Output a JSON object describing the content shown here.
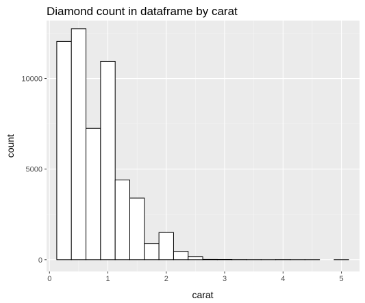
{
  "chart_data": {
    "type": "bar",
    "title": "Diamond count in dataframe by carat",
    "xlabel": "carat",
    "ylabel": "count",
    "xlim": [
      -0.05,
      5.31
    ],
    "ylim": [
      -650,
      13200
    ],
    "x_ticks": [
      0,
      1,
      2,
      3,
      4,
      5
    ],
    "x_tick_labels": [
      "0",
      "1",
      "2",
      "3",
      "4",
      "5"
    ],
    "y_ticks": [
      0,
      5000,
      10000
    ],
    "y_tick_labels": [
      "0",
      "5000",
      "10000"
    ],
    "grid": true,
    "bin_width": 0.25,
    "bins": [
      {
        "x0": 0.125,
        "x1": 0.375,
        "count": 12050
      },
      {
        "x0": 0.375,
        "x1": 0.625,
        "count": 12750
      },
      {
        "x0": 0.625,
        "x1": 0.875,
        "count": 7250
      },
      {
        "x0": 0.875,
        "x1": 1.125,
        "count": 10950
      },
      {
        "x0": 1.125,
        "x1": 1.375,
        "count": 4400
      },
      {
        "x0": 1.375,
        "x1": 1.625,
        "count": 3400
      },
      {
        "x0": 1.625,
        "x1": 1.875,
        "count": 880
      },
      {
        "x0": 1.875,
        "x1": 2.125,
        "count": 1500
      },
      {
        "x0": 2.125,
        "x1": 2.375,
        "count": 460
      },
      {
        "x0": 2.375,
        "x1": 2.625,
        "count": 160
      },
      {
        "x0": 2.625,
        "x1": 2.875,
        "count": 15
      },
      {
        "x0": 2.875,
        "x1": 3.125,
        "count": 12
      },
      {
        "x0": 3.125,
        "x1": 3.375,
        "count": 4
      },
      {
        "x0": 3.375,
        "x1": 3.625,
        "count": 2
      },
      {
        "x0": 3.625,
        "x1": 3.875,
        "count": 1
      },
      {
        "x0": 3.875,
        "x1": 4.125,
        "count": 4
      },
      {
        "x0": 4.125,
        "x1": 4.375,
        "count": 1
      },
      {
        "x0": 4.375,
        "x1": 4.625,
        "count": 1
      },
      {
        "x0": 4.625,
        "x1": 4.875,
        "count": 0
      },
      {
        "x0": 4.875,
        "x1": 5.125,
        "count": 1
      }
    ],
    "colors": {
      "panel_background": "#ebebeb",
      "grid_major": "#ffffff",
      "grid_minor": "#f5f5f5",
      "bar_fill": "#ffffff",
      "bar_outline": "#000000",
      "tick_mark": "#333333"
    }
  }
}
